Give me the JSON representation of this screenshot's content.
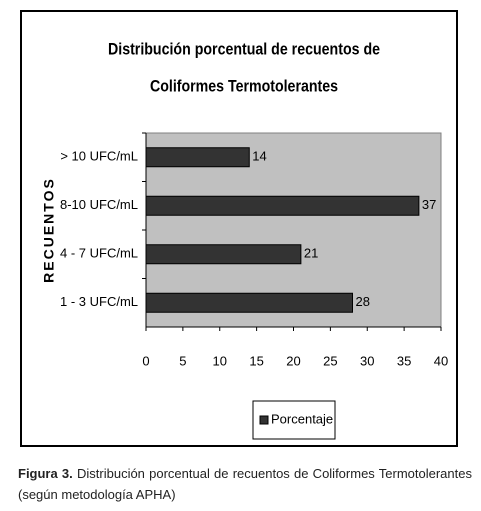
{
  "chart_data": {
    "type": "bar",
    "orientation": "horizontal",
    "title": [
      "Distribución porcentual de recuentos de",
      "Coliformes Termotolerantes"
    ],
    "y_label": "RECUENTOS",
    "categories": [
      "> 10 UFC/mL",
      "8-10 UFC/mL",
      "4 - 7 UFC/mL",
      "1  - 3 UFC/mL"
    ],
    "series": [
      {
        "name": "Porcentaje",
        "color": "#333333",
        "values": [
          14,
          37,
          21,
          28
        ]
      }
    ],
    "xlim": [
      0,
      40
    ],
    "xticks": [
      0,
      5,
      10,
      15,
      20,
      25,
      30,
      35,
      40
    ],
    "plot_background": "#c0c0c0",
    "legend": "bottom",
    "grid": false
  },
  "caption": {
    "label": "Figura 3.",
    "text": "Distribución porcentual de recuentos de Coliformes Termotolerantes (según metodología APHA)"
  }
}
